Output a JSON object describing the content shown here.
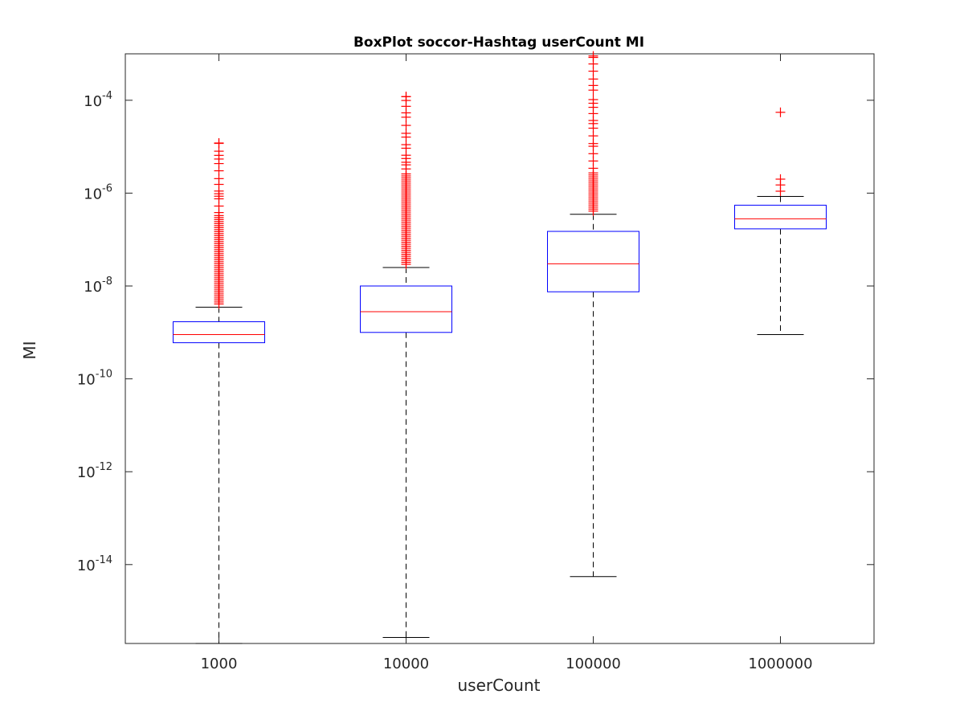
{
  "chart_data": {
    "type": "boxplot",
    "title": "BoxPlot soccor-Hashtag userCount MI",
    "xlabel": "userCount",
    "ylabel": "MI",
    "yscale": "log",
    "ylim": [
      2e-16,
      0.001
    ],
    "categories": [
      "1000",
      "10000",
      "100000",
      "1000000"
    ],
    "yticks": [
      {
        "exp": "-14",
        "value": 1e-14
      },
      {
        "exp": "-12",
        "value": 1e-12
      },
      {
        "exp": "-10",
        "value": 1e-10
      },
      {
        "exp": "-8",
        "value": 1e-08
      },
      {
        "exp": "-6",
        "value": 1e-06
      },
      {
        "exp": "-4",
        "value": 0.0001
      }
    ],
    "ytick_base": "10",
    "boxes": [
      {
        "category": "1000",
        "whisker_low": 2e-16,
        "q1": 6e-10,
        "median": 9e-10,
        "q3": 1.7e-09,
        "whisker_high": 3.5e-09,
        "outliers_range": [
          3.5e-09,
          1.2e-05
        ]
      },
      {
        "category": "10000",
        "whisker_low": 2.7e-16,
        "q1": 1e-09,
        "median": 2.8e-09,
        "q3": 1e-08,
        "whisker_high": 2.5e-08,
        "outliers_range": [
          2.5e-08,
          0.00012
        ]
      },
      {
        "category": "100000",
        "whisker_low": 5.5e-15,
        "q1": 7.5e-09,
        "median": 3e-08,
        "q3": 1.5e-07,
        "whisker_high": 3.5e-07,
        "outliers_range": [
          3.5e-07,
          0.0009
        ]
      },
      {
        "category": "1000000",
        "whisker_low": 9e-10,
        "q1": 1.7e-07,
        "median": 2.8e-07,
        "q3": 5.5e-07,
        "whisker_high": 8.5e-07,
        "outliers": [
          1.1e-06,
          1.5e-06,
          2e-06,
          5.5e-05
        ]
      }
    ],
    "colors": {
      "box": "#0000ff",
      "median": "#ff0000",
      "whisker": "#000000",
      "outlier": "#ff0000",
      "axis": "#262626"
    }
  }
}
